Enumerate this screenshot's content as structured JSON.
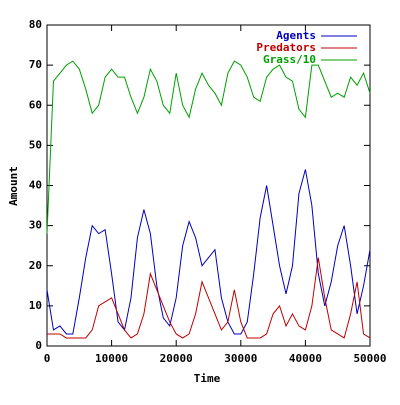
{
  "chart_data": {
    "type": "line",
    "xlabel": "Time",
    "ylabel": "Amount",
    "x": [
      0,
      1000,
      2000,
      3000,
      4000,
      5000,
      6000,
      7000,
      8000,
      9000,
      10000,
      11000,
      12000,
      13000,
      14000,
      15000,
      16000,
      17000,
      18000,
      19000,
      20000,
      21000,
      22000,
      23000,
      24000,
      25000,
      26000,
      27000,
      28000,
      29000,
      30000,
      31000,
      32000,
      33000,
      34000,
      35000,
      36000,
      37000,
      38000,
      39000,
      40000,
      41000,
      42000,
      43000,
      44000,
      45000,
      46000,
      47000,
      48000,
      49000,
      50000
    ],
    "series": [
      {
        "name": "Agents",
        "color": "#0000c0",
        "values": [
          14,
          4,
          5,
          3,
          3,
          12,
          22,
          30,
          28,
          29,
          18,
          6,
          4,
          12,
          27,
          34,
          28,
          15,
          7,
          5,
          12,
          25,
          31,
          27,
          20,
          22,
          24,
          12,
          6,
          3,
          3,
          6,
          18,
          32,
          40,
          30,
          20,
          13,
          20,
          38,
          44,
          35,
          18,
          10,
          16,
          25,
          30,
          20,
          8,
          15,
          24
        ]
      },
      {
        "name": "Predators",
        "color": "#c00000",
        "values": [
          3,
          3,
          3,
          2,
          2,
          2,
          2,
          4,
          10,
          11,
          12,
          8,
          4,
          2,
          3,
          8,
          18,
          14,
          10,
          6,
          3,
          2,
          3,
          8,
          16,
          12,
          8,
          4,
          6,
          14,
          6,
          2,
          2,
          2,
          3,
          8,
          10,
          5,
          8,
          5,
          4,
          10,
          22,
          12,
          4,
          3,
          2,
          8,
          16,
          3,
          2
        ]
      },
      {
        "name": "Grass/10",
        "color": "#00a000",
        "values": [
          28,
          66,
          68,
          70,
          71,
          69,
          64,
          58,
          60,
          67,
          69,
          67,
          67,
          62,
          58,
          62,
          69,
          66,
          60,
          58,
          68,
          60,
          57,
          64,
          68,
          65,
          63,
          60,
          68,
          71,
          70,
          67,
          62,
          61,
          67,
          69,
          70,
          67,
          66,
          59,
          57,
          70,
          70,
          66,
          62,
          63,
          62,
          67,
          65,
          68,
          63
        ]
      }
    ],
    "xlim": [
      0,
      50000
    ],
    "xticks": [
      0,
      10000,
      20000,
      30000,
      40000,
      50000
    ],
    "ylim": [
      0,
      80
    ],
    "yticks": [
      0,
      10,
      20,
      30,
      40,
      50,
      60,
      70,
      80
    ],
    "legend": "top right"
  }
}
